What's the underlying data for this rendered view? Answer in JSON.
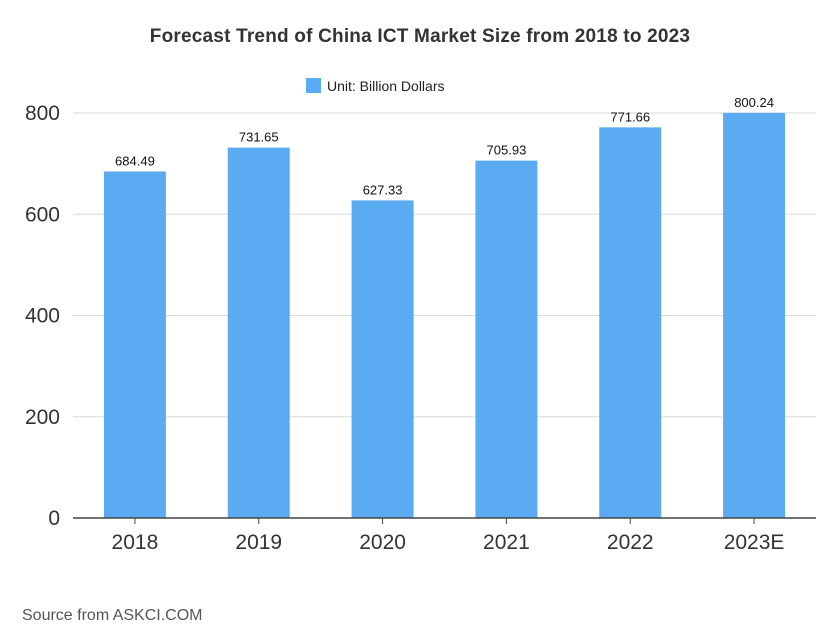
{
  "chart_data": {
    "type": "bar",
    "title": "Forecast Trend of China ICT Market Size from 2018 to 2023",
    "categories": [
      "2018",
      "2019",
      "2020",
      "2021",
      "2022",
      "2023E"
    ],
    "series": [
      {
        "name": "Unit: Billion Dollars",
        "values": [
          684.49,
          731.65,
          627.33,
          705.93,
          771.66,
          800.24
        ],
        "color": "#5aabf1"
      }
    ],
    "data_labels": [
      "684.49",
      "731.65",
      "627.33",
      "705.93",
      "771.66",
      "800.24"
    ],
    "y_ticks": [
      0,
      200,
      400,
      600,
      800
    ],
    "ylim": [
      0,
      800
    ],
    "grid": true,
    "legend_position": "top-center",
    "xlabel": "",
    "ylabel": ""
  },
  "source": "Source from ASKCI.COM"
}
